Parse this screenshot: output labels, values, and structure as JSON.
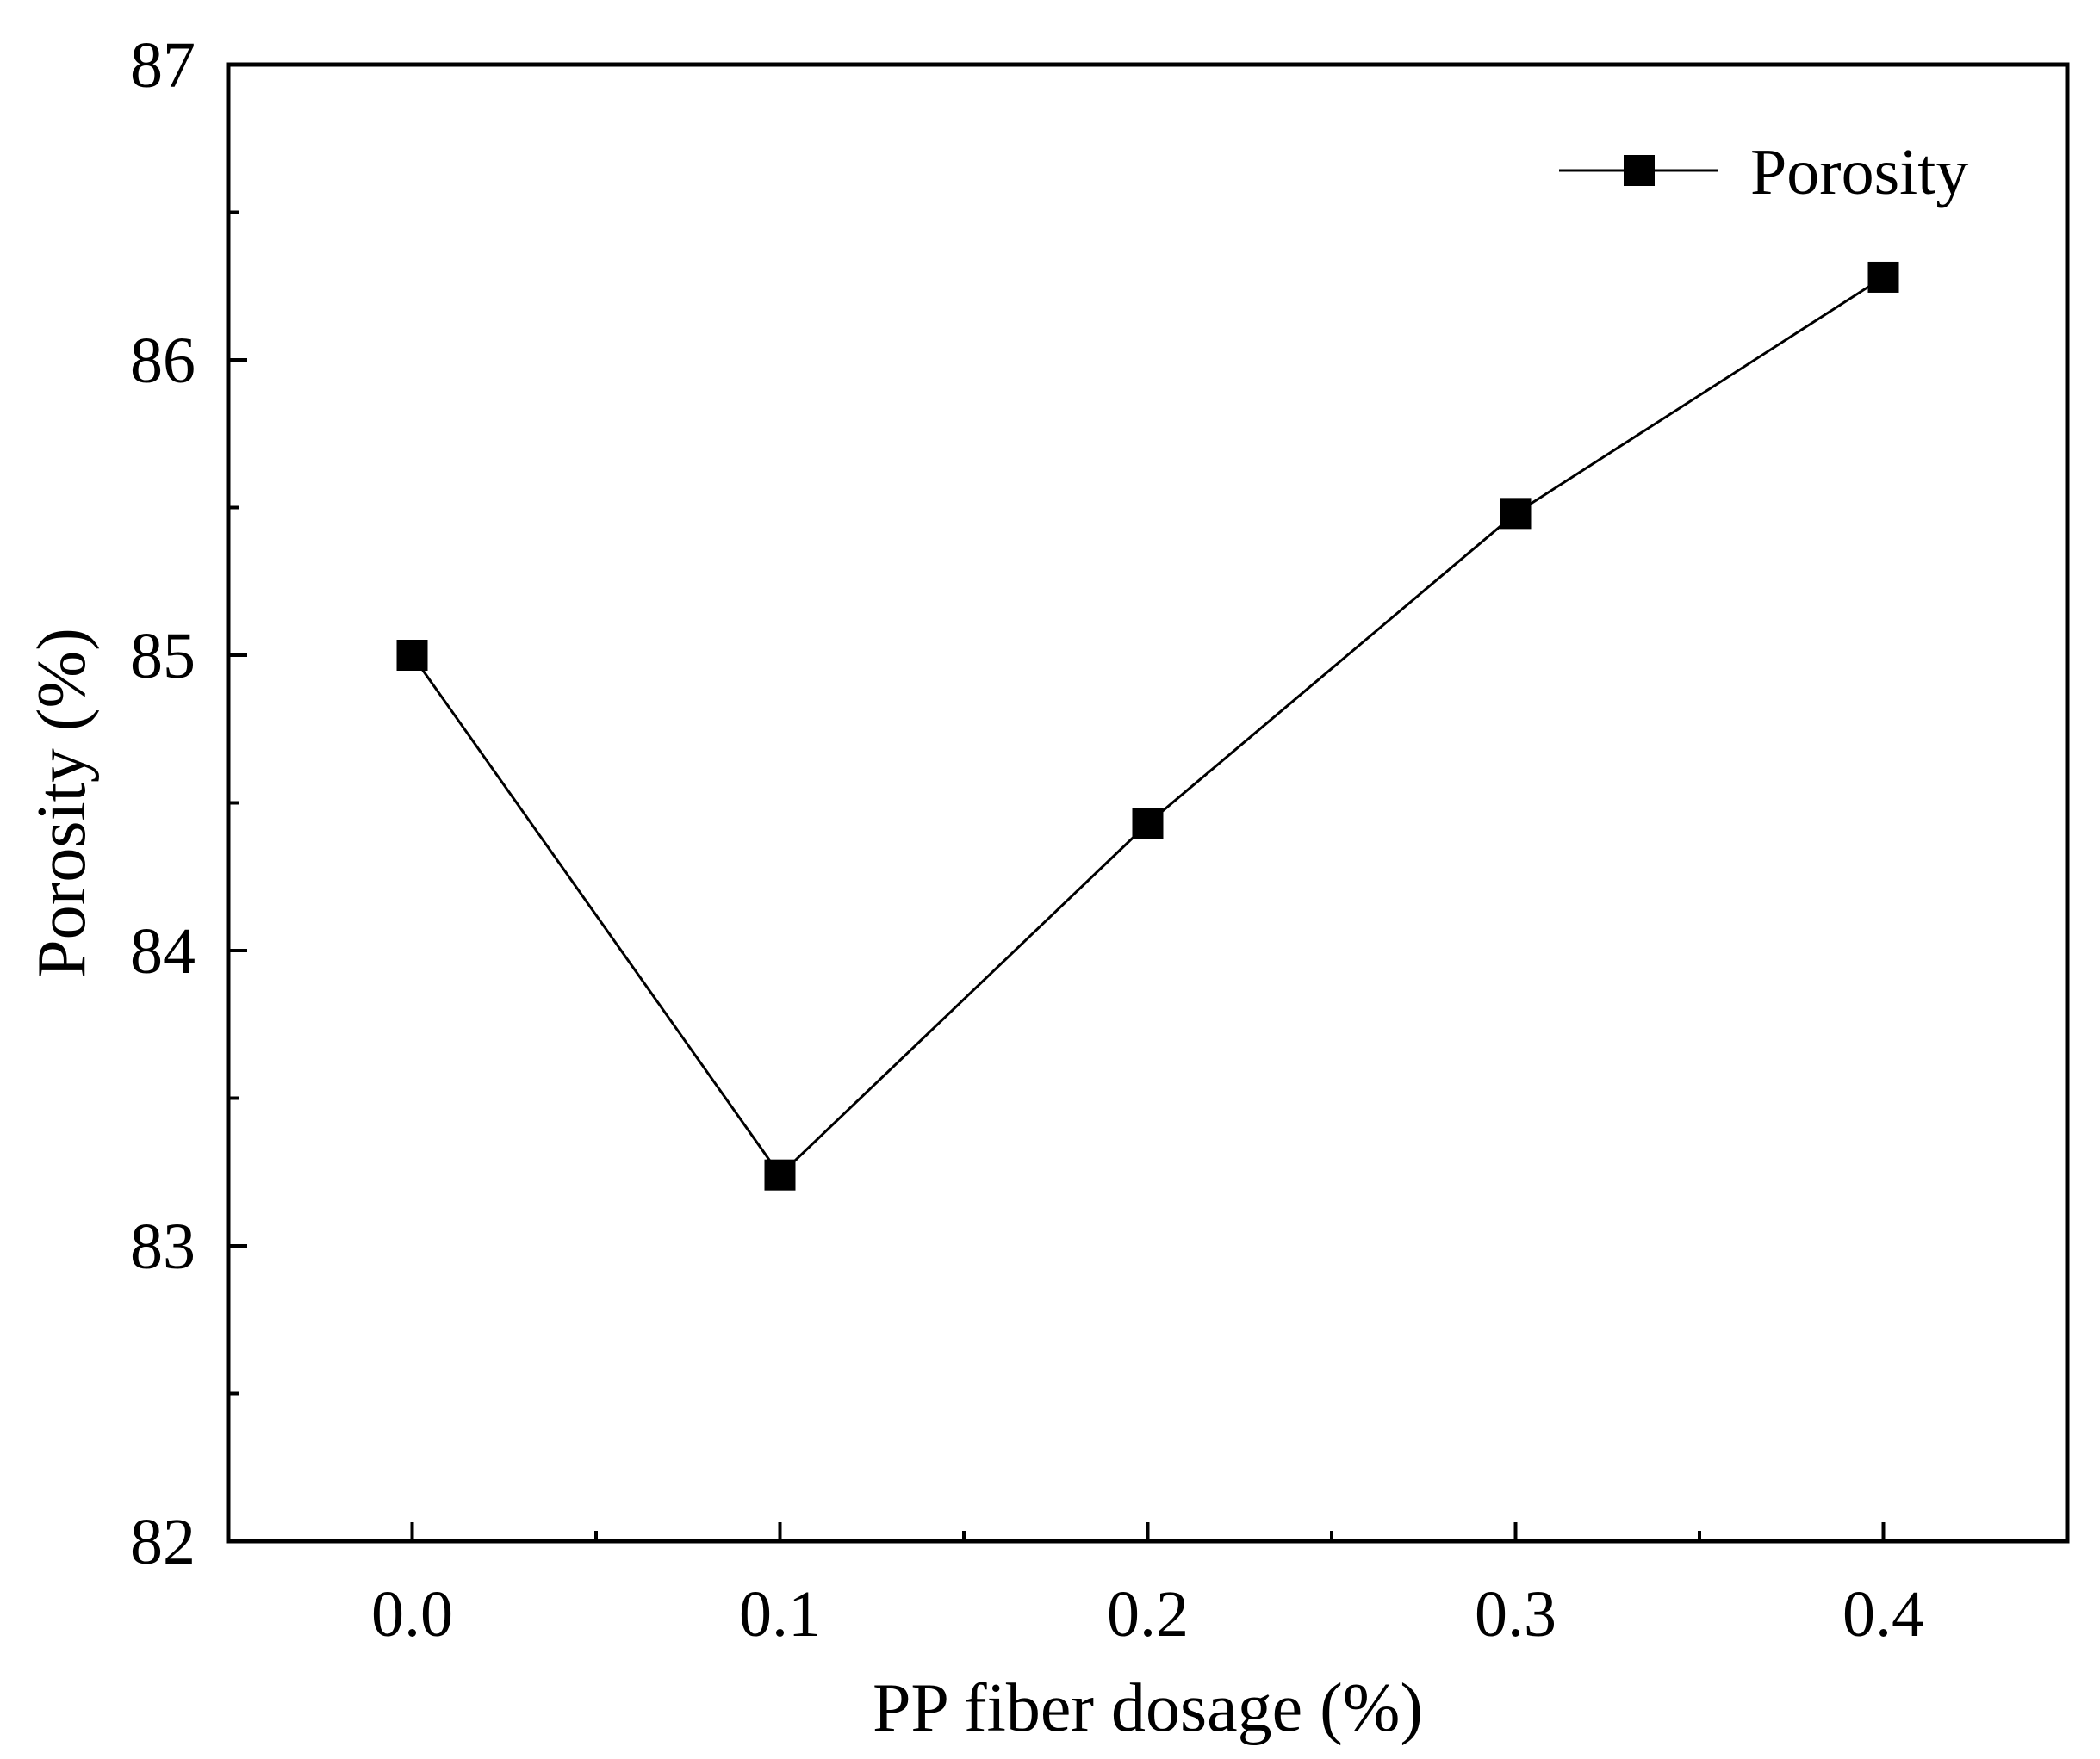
{
  "chart_data": {
    "type": "line",
    "title": "",
    "xlabel": "PP fiber dosage (%)",
    "ylabel": "Porosity (%)",
    "xlim": [
      -0.05,
      0.45
    ],
    "ylim": [
      82,
      87
    ],
    "grid": false,
    "legend_position": "top-right",
    "x_ticks": [
      {
        "value": 0.0,
        "label": "0.0"
      },
      {
        "value": 0.1,
        "label": "0.1"
      },
      {
        "value": 0.2,
        "label": "0.2"
      },
      {
        "value": 0.3,
        "label": "0.3"
      },
      {
        "value": 0.4,
        "label": "0.4"
      }
    ],
    "y_ticks": [
      {
        "value": 82,
        "label": "82"
      },
      {
        "value": 83,
        "label": "83"
      },
      {
        "value": 84,
        "label": "84"
      },
      {
        "value": 85,
        "label": "85"
      },
      {
        "value": 86,
        "label": "86"
      },
      {
        "value": 87,
        "label": "87"
      }
    ],
    "y_minor_ticks": [
      82.5,
      83.5,
      84.5,
      85.5,
      86.5
    ],
    "series": [
      {
        "name": "Porosity",
        "marker": "square",
        "color": "#000000",
        "x": [
          0.0,
          0.1,
          0.2,
          0.3,
          0.4
        ],
        "y": [
          85.0,
          83.24,
          84.43,
          85.48,
          86.28
        ]
      }
    ]
  }
}
